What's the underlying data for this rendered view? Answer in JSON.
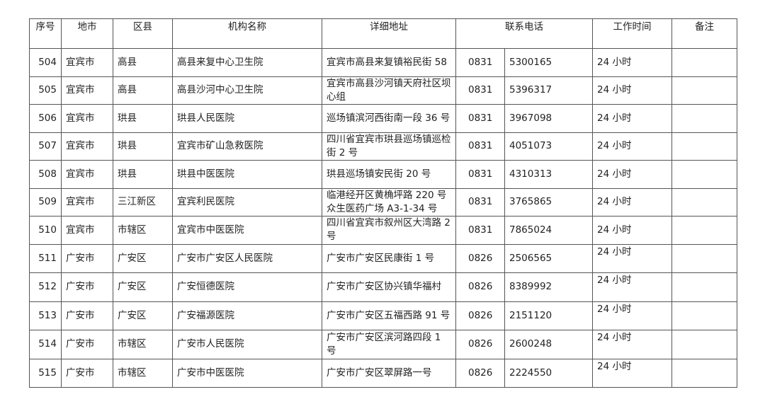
{
  "headers": [
    "序号",
    "地市",
    "区县",
    "机构名称",
    "详细地址",
    "联系电话",
    "工作时间",
    "备注"
  ],
  "rows": [
    {
      "no": "504",
      "city": "宜宾市",
      "county": "高县",
      "name": "高县来复中心卫生院",
      "address": "宜宾市高县来复镇裕民街 58",
      "area": "0831",
      "tel": "5300165",
      "hours": "24 小时",
      "note": "",
      "hours_top": false
    },
    {
      "no": "505",
      "city": "宜宾市",
      "county": "高县",
      "name": "高县沙河中心卫生院",
      "address": "宜宾市高县沙河镇天府社区坝心组",
      "area": "0831",
      "tel": "5396317",
      "hours": "24 小时",
      "note": "",
      "hours_top": false
    },
    {
      "no": "506",
      "city": "宜宾市",
      "county": "珙县",
      "name": "珙县人民医院",
      "address": "巡场镇滨河西街南一段 36 号",
      "area": "0831",
      "tel": "3967098",
      "hours": "24 小时",
      "note": "",
      "hours_top": false
    },
    {
      "no": "507",
      "city": "宜宾市",
      "county": "珙县",
      "name": "宜宾市矿山急救医院",
      "address": "四川省宜宾市珙县巡场镇巡检街 2 号",
      "area": "0831",
      "tel": "4051073",
      "hours": "24 小时",
      "note": "",
      "hours_top": false
    },
    {
      "no": "508",
      "city": "宜宾市",
      "county": "珙县",
      "name": "珙县中医医院",
      "address": "珙县巡场镇安民街 20 号",
      "area": "0831",
      "tel": "4310313",
      "hours": "24 小时",
      "note": "",
      "hours_top": false
    },
    {
      "no": "509",
      "city": "宜宾市",
      "county": "三江新区",
      "name": "宜宾利民医院",
      "address": "临港经开区黄桷坪路 220 号众生医药广场 A3-1-34 号",
      "area": "0831",
      "tel": "3765865",
      "hours": "24 小时",
      "note": "",
      "hours_top": false
    },
    {
      "no": "510",
      "city": "宜宾市",
      "county": "市辖区",
      "name": "宜宾市中医医院",
      "address": "四川省宜宾市叙州区大湾路 2 号",
      "area": "0831",
      "tel": "7865024",
      "hours": "24 小时",
      "note": "",
      "hours_top": false
    },
    {
      "no": "511",
      "city": "广安市",
      "county": "广安区",
      "name": "广安市广安区人民医院",
      "address": "广安市广安区民康街 1 号",
      "area": "0826",
      "tel": "2506565",
      "hours": "24 小时",
      "note": "",
      "hours_top": true
    },
    {
      "no": "512",
      "city": "广安市",
      "county": "广安区",
      "name": "广安恒德医院",
      "address": "广安市广安区协兴镇华福村",
      "area": "0826",
      "tel": "8389992",
      "hours": "24 小时",
      "note": "",
      "hours_top": true
    },
    {
      "no": "513",
      "city": "广安市",
      "county": "广安区",
      "name": "广安福源医院",
      "address": "广安市广安区五福西路 91 号",
      "area": "0826",
      "tel": "2151120",
      "hours": "24 小时",
      "note": "",
      "hours_top": true
    },
    {
      "no": "514",
      "city": "广安市",
      "county": "市辖区",
      "name": "广安市人民医院",
      "address": "广安市广安区滨河路四段 1 号",
      "area": "0826",
      "tel": "2600248",
      "hours": "24 小时",
      "note": "",
      "hours_top": true
    },
    {
      "no": "515",
      "city": "广安市",
      "county": "市辖区",
      "name": "广安市中医医院",
      "address": "广安市广安区翠屏路一号",
      "area": "0826",
      "tel": "2224550",
      "hours": "24 小时",
      "note": "",
      "hours_top": true
    }
  ]
}
